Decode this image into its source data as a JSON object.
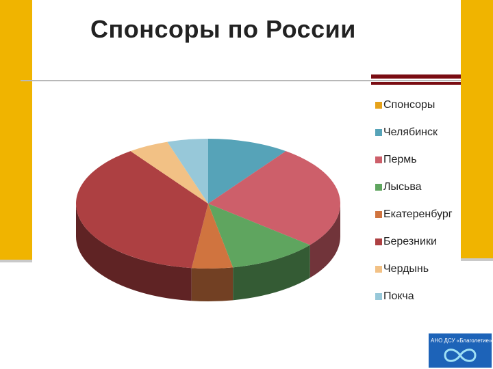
{
  "title": "Спонсоры по России",
  "chart_data": {
    "type": "pie",
    "title": "Спонсоры по России",
    "legend_position": "right",
    "legend_title": "Спонсоры",
    "legend_title_color": "#e6a21a",
    "categories": [
      "Челябинск",
      "Пермь",
      "Лысьва",
      "Екатеренбург",
      "Березники",
      "Чердынь",
      "Покча"
    ],
    "values": [
      10,
      26,
      11,
      5,
      38,
      5,
      5
    ],
    "colors": [
      "#56a3b8",
      "#cd5f6a",
      "#5fa55f",
      "#d0743f",
      "#ad4042",
      "#f2c185",
      "#97c8d9"
    ]
  },
  "logo": {
    "text": "АНО ДСУ «Благолетие»"
  }
}
